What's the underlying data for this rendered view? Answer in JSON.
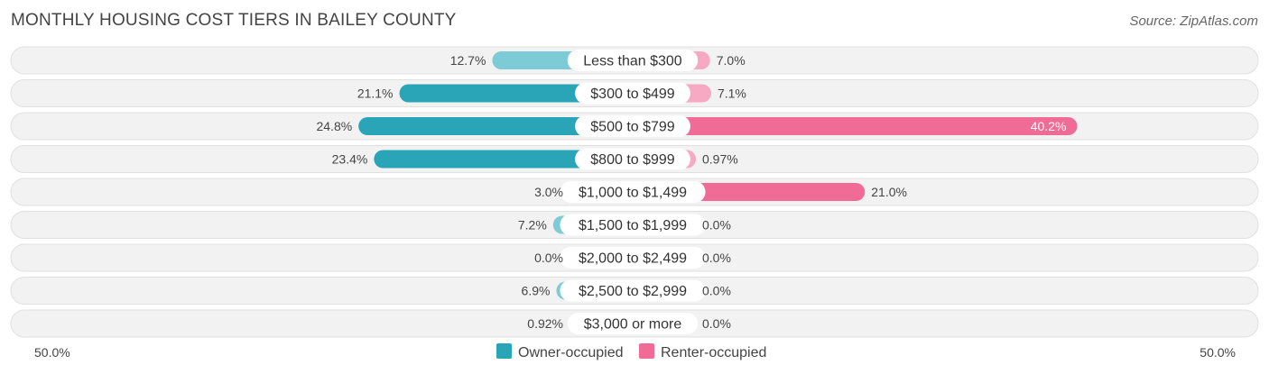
{
  "header": {
    "title": "MONTHLY HOUSING COST TIERS IN BAILEY COUNTY",
    "source": "Source: ZipAtlas.com"
  },
  "colors": {
    "owner": "#2aa5b8",
    "owner_light": "#7ccbd6",
    "renter": "#f06b96",
    "renter_light": "#f7a8c2",
    "row_bg": "#f2f2f2",
    "row_border": "#e0e0e0"
  },
  "chart_data": {
    "type": "bar",
    "orientation": "diverging-horizontal",
    "title": "MONTHLY HOUSING COST TIERS IN BAILEY COUNTY",
    "categories": [
      "Less than $300",
      "$300 to $499",
      "$500 to $799",
      "$800 to $999",
      "$1,000 to $1,499",
      "$1,500 to $1,999",
      "$2,000 to $2,499",
      "$2,500 to $2,999",
      "$3,000 or more"
    ],
    "series": [
      {
        "name": "Owner-occupied",
        "values": [
          12.7,
          21.1,
          24.8,
          23.4,
          3.0,
          7.2,
          0.0,
          6.9,
          0.92
        ],
        "labels": [
          "12.7%",
          "21.1%",
          "24.8%",
          "23.4%",
          "3.0%",
          "7.2%",
          "0.0%",
          "6.9%",
          "0.92%"
        ]
      },
      {
        "name": "Renter-occupied",
        "values": [
          7.0,
          7.1,
          40.2,
          0.97,
          21.0,
          0.0,
          0.0,
          0.0,
          0.0
        ],
        "labels": [
          "7.0%",
          "7.1%",
          "40.2%",
          "0.97%",
          "21.0%",
          "0.0%",
          "0.0%",
          "0.0%",
          "0.0%"
        ]
      }
    ],
    "axis": {
      "min_label": "50.0%",
      "max_label": "50.0%",
      "max": 50
    },
    "legend": {
      "position": "bottom-center",
      "items": [
        "Owner-occupied",
        "Renter-occupied"
      ]
    }
  }
}
